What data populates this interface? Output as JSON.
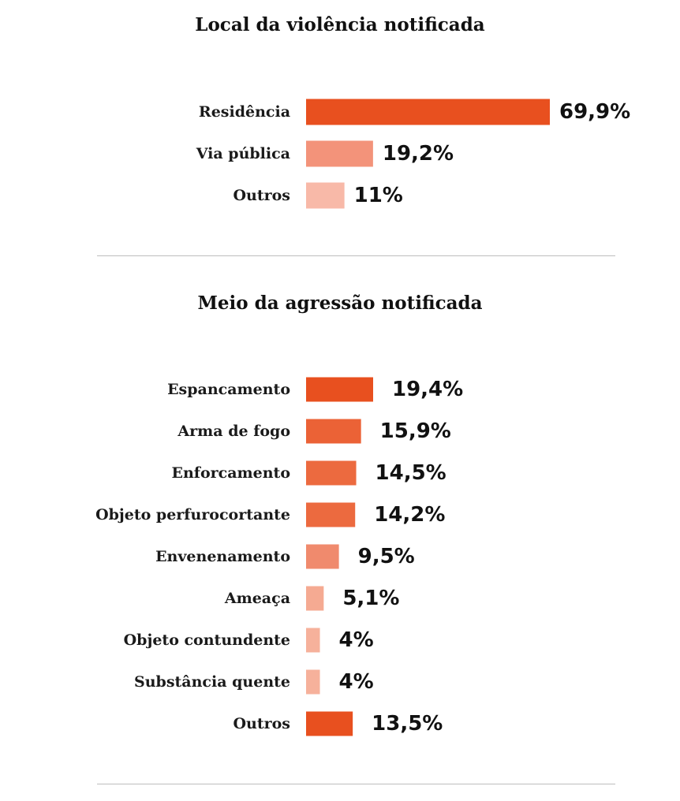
{
  "chart_data": [
    {
      "type": "bar",
      "orientation": "horizontal",
      "title": "Local da violência notificada",
      "categories": [
        "Residência",
        "Via pública",
        "Outros"
      ],
      "values": [
        69.9,
        19.2,
        11
      ],
      "value_labels": [
        "69,9%",
        "19,2%",
        "11%"
      ],
      "colors": [
        "#e8501f",
        "#f3937a",
        "#f8b9a8"
      ],
      "xlim": [
        0,
        69.9
      ],
      "grid": false
    },
    {
      "type": "bar",
      "orientation": "horizontal",
      "title": "Meio da agressão notificada",
      "categories": [
        "Espancamento",
        "Arma de fogo",
        "Enforcamento",
        "Objeto perfurocortante",
        "Envenenamento",
        "Ameaça",
        "Objeto contundente",
        "Substância quente",
        "Outros"
      ],
      "values": [
        19.4,
        15.9,
        14.5,
        14.2,
        9.5,
        5.1,
        4,
        4,
        13.5
      ],
      "value_labels": [
        "19,4%",
        "15,9%",
        "14,5%",
        "14,2%",
        "9,5%",
        "5,1%",
        "4%",
        "4%",
        "13,5%"
      ],
      "colors": [
        "#e8501f",
        "#eb6236",
        "#ec6a3f",
        "#ec6a3f",
        "#f08a6d",
        "#f5aa92",
        "#f6b19b",
        "#f6b19b",
        "#e8501f"
      ],
      "xlim": [
        0,
        19.4
      ],
      "grid": false
    }
  ]
}
